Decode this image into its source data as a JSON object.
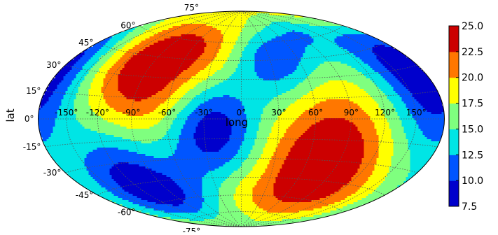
{
  "chart_data": {
    "type": "heatmap",
    "projection": "aitoff/hammer (elliptical)",
    "xlabel": "long",
    "ylabel": "lat",
    "longitude_ticks": [
      "-150°",
      "-120°",
      "-90°",
      "-60°",
      "-30°",
      "0°",
      "30°",
      "60°",
      "90°",
      "120°",
      "150°"
    ],
    "latitude_ticks_left": [
      "75°",
      "60°",
      "45°",
      "30°",
      "15°",
      "0°",
      "-15°",
      "-30°",
      "-45°",
      "-60°",
      "-75°"
    ],
    "grid": true,
    "colorbar": {
      "levels": [
        7.5,
        10.0,
        12.5,
        15.0,
        17.5,
        20.0,
        22.5,
        25.0
      ],
      "tick_labels": [
        "7.5",
        "10.0",
        "12.5",
        "15.0",
        "17.5",
        "20.0",
        "22.5",
        "25.0"
      ],
      "colors": [
        "#0000cc",
        "#0055ff",
        "#00e5e5",
        "#7fff7f",
        "#ffff00",
        "#ff7700",
        "#cc0000"
      ]
    },
    "field": "f(lon, lat) = 16 + 8 · sin(2·lon) · cos(lat)^2 · sin(2·lat + lon) approx; maxima near (-90°,40°) and (75°,-30°), minima near (-20°,-5°), (170°,30°), (-100°,-40°), (30°,40°)",
    "colormap_name": "jet"
  }
}
